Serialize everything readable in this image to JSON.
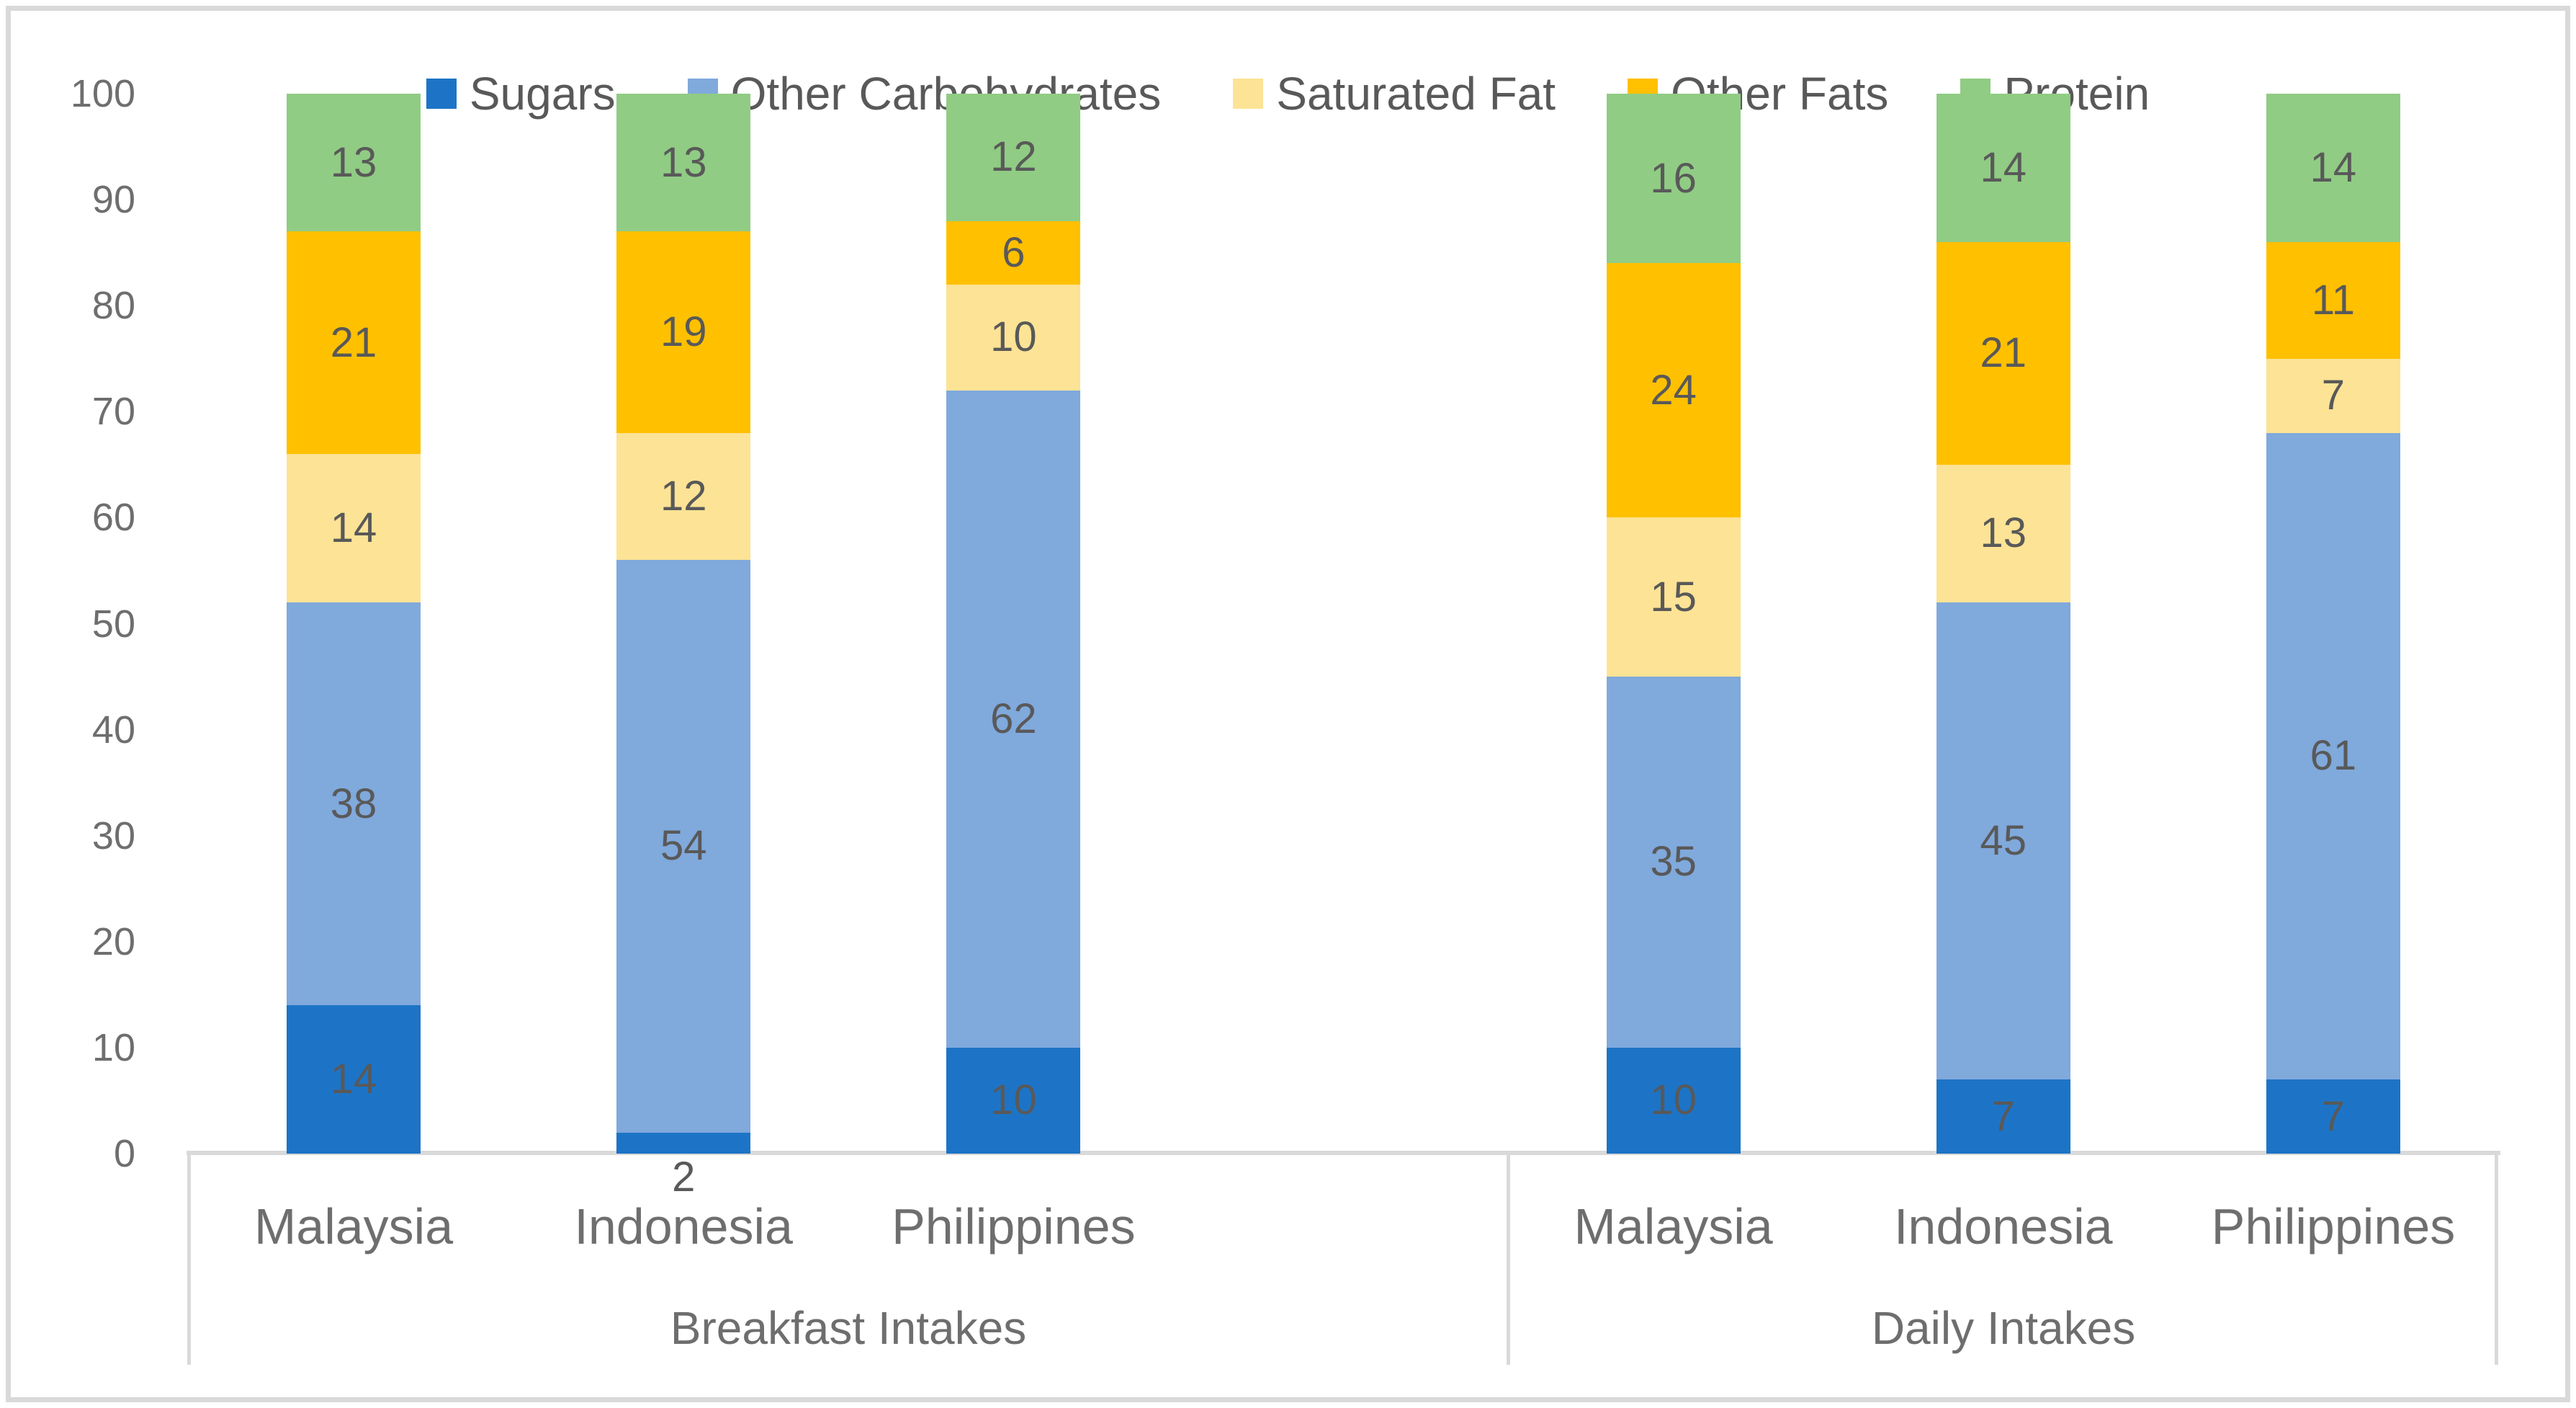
{
  "chart_data": {
    "type": "bar",
    "stacked": true,
    "title": "",
    "categories": [
      "Malaysia",
      "Indonesia",
      "Philippines",
      "Malaysia",
      "Indonesia",
      "Philippines"
    ],
    "group_labels": [
      "Breakfast Intakes",
      "Daily Intakes"
    ],
    "series": [
      {
        "name": "Sugars",
        "color": "#1D74C6",
        "values": [
          14,
          2,
          10,
          10,
          7,
          7
        ]
      },
      {
        "name": "Other Carbohydrates",
        "color": "#80A9DC",
        "values": [
          38,
          54,
          62,
          35,
          45,
          61
        ]
      },
      {
        "name": "Saturated Fat",
        "color": "#FDE395",
        "values": [
          14,
          12,
          10,
          15,
          13,
          7
        ]
      },
      {
        "name": "Other Fats",
        "color": "#FFC000",
        "values": [
          21,
          19,
          6,
          24,
          21,
          11
        ]
      },
      {
        "name": "Protein",
        "color": "#90CC84",
        "values": [
          13,
          13,
          12,
          16,
          14,
          14
        ]
      }
    ],
    "ylim": [
      0,
      100
    ],
    "y_ticks": [
      0,
      10,
      20,
      30,
      40,
      50,
      60,
      70,
      80,
      90,
      100
    ],
    "xlabel": "",
    "ylabel": "",
    "legend_position": "top",
    "gridlines": false,
    "data_labels": true,
    "axis_color": "#D9D9D9",
    "label_color": "#595959",
    "tick_color": "#6E6E6E",
    "background": "#FFFFFF"
  }
}
